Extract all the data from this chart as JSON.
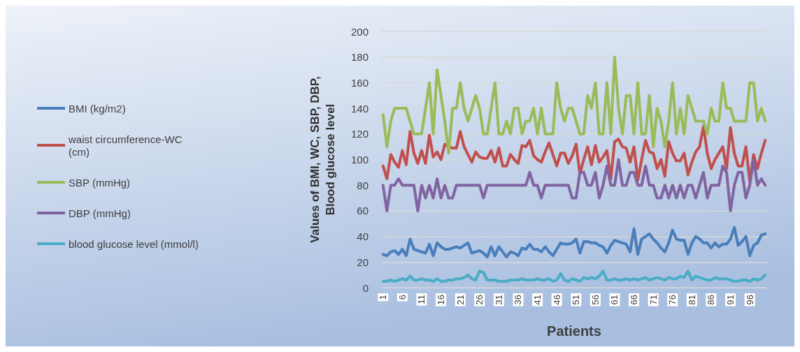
{
  "chart_data": {
    "type": "line",
    "xlabel": "Patients",
    "ylabel": "Values of BMI, WC, SBP, DBP, Blood glucose level",
    "categories": [
      "1",
      null,
      null,
      null,
      null,
      "6",
      null,
      null,
      null,
      null,
      "11",
      null,
      null,
      null,
      null,
      "16",
      null,
      null,
      null,
      null,
      "21",
      null,
      null,
      null,
      null,
      "26",
      null,
      null,
      null,
      null,
      "31",
      null,
      null,
      null,
      null,
      "36",
      null,
      null,
      null,
      null,
      "41",
      null,
      null,
      null,
      null,
      "46",
      null,
      null,
      null,
      null,
      "51",
      null,
      null,
      null,
      null,
      "56",
      null,
      null,
      null,
      null,
      "61",
      null,
      null,
      null,
      null,
      "66",
      null,
      null,
      null,
      null,
      "71",
      null,
      null,
      null,
      null,
      "76",
      null,
      null,
      null,
      null,
      "81",
      null,
      null,
      null,
      null,
      "86",
      null,
      null,
      null,
      null,
      "91",
      null,
      null,
      null,
      null,
      "96",
      null,
      null,
      null,
      null
    ],
    "series": [
      {
        "name": "BMI (kg/m2)",
        "color": "#4a7ebb",
        "values": [
          26,
          25,
          28,
          29,
          26,
          30,
          25,
          38,
          30,
          29,
          28,
          27,
          34,
          25,
          35,
          32,
          30,
          30,
          31,
          32,
          31,
          33,
          35,
          27,
          28,
          29,
          27,
          24,
          32,
          25,
          32,
          28,
          24,
          28,
          27,
          25,
          31,
          30,
          34,
          30,
          30,
          28,
          32,
          28,
          25,
          30,
          35,
          34,
          34,
          35,
          38,
          27,
          36,
          36,
          35,
          35,
          33,
          32,
          27,
          33,
          37,
          36,
          35,
          34,
          28,
          46,
          26,
          38,
          40,
          42,
          38,
          35,
          31,
          28,
          35,
          45,
          38,
          37,
          37,
          26,
          35,
          40,
          38,
          35,
          35,
          31,
          35,
          32,
          34,
          34,
          38,
          47,
          33,
          36,
          40,
          25,
          33,
          35,
          41,
          42
        ]
      },
      {
        "name": "waist circumference-WC (cm)",
        "color": "#c0504d",
        "values": [
          95,
          85,
          104,
          98,
          94,
          107,
          96,
          122,
          105,
          97,
          107,
          97,
          119,
          102,
          106,
          100,
          112,
          110,
          109,
          109,
          122,
          110,
          104,
          98,
          106,
          102,
          101,
          101,
          107,
          98,
          109,
          95,
          95,
          104,
          100,
          97,
          111,
          110,
          115,
          103,
          100,
          98,
          106,
          113,
          104,
          95,
          105,
          105,
          97,
          103,
          112,
          89,
          100,
          110,
          96,
          111,
          98,
          102,
          107,
          85,
          114,
          116,
          110,
          109,
          98,
          110,
          84,
          100,
          115,
          106,
          105,
          93,
          100,
          87,
          114,
          105,
          99,
          99,
          105,
          88,
          98,
          106,
          110,
          126,
          105,
          93,
          100,
          105,
          110,
          93,
          125,
          105,
          95,
          95,
          110,
          83,
          104,
          93,
          105,
          115
        ]
      },
      {
        "name": "SBP (mmHg)",
        "color": "#9bbb59",
        "values": [
          135,
          110,
          130,
          140,
          140,
          140,
          140,
          130,
          120,
          120,
          120,
          140,
          160,
          120,
          170,
          150,
          130,
          105,
          140,
          140,
          160,
          140,
          130,
          140,
          150,
          140,
          120,
          120,
          140,
          160,
          120,
          120,
          130,
          120,
          140,
          140,
          120,
          130,
          130,
          140,
          120,
          140,
          120,
          120,
          120,
          160,
          140,
          130,
          140,
          140,
          130,
          120,
          120,
          150,
          140,
          160,
          120,
          120,
          160,
          120,
          180,
          140,
          120,
          150,
          150,
          120,
          160,
          120,
          120,
          150,
          110,
          140,
          130,
          110,
          130,
          160,
          120,
          140,
          120,
          150,
          140,
          130,
          130,
          130,
          120,
          140,
          130,
          130,
          160,
          140,
          140,
          130,
          130,
          130,
          130,
          160,
          160,
          130,
          140,
          130
        ]
      },
      {
        "name": "DBP (mmHg)",
        "color": "#8064a2",
        "values": [
          80,
          60,
          80,
          80,
          85,
          80,
          80,
          80,
          80,
          60,
          80,
          70,
          80,
          70,
          85,
          70,
          80,
          70,
          70,
          80,
          80,
          80,
          80,
          80,
          80,
          80,
          70,
          80,
          80,
          80,
          80,
          80,
          80,
          80,
          80,
          80,
          80,
          80,
          90,
          80,
          80,
          70,
          80,
          80,
          80,
          80,
          80,
          80,
          80,
          70,
          70,
          90,
          90,
          80,
          80,
          90,
          70,
          80,
          95,
          80,
          80,
          100,
          80,
          80,
          90,
          90,
          80,
          80,
          95,
          80,
          80,
          70,
          70,
          80,
          70,
          80,
          70,
          80,
          70,
          80,
          80,
          70,
          80,
          90,
          70,
          80,
          80,
          80,
          95,
          90,
          60,
          80,
          90,
          90,
          70,
          80,
          100,
          80,
          85,
          80
        ]
      },
      {
        "name": "blood glucose level (mmol/l)",
        "color": "#4bacc6",
        "values": [
          5,
          5,
          6,
          5,
          6,
          7,
          6,
          9,
          6,
          6,
          7,
          6,
          6,
          5,
          7,
          5,
          5,
          6,
          6,
          7,
          7,
          8,
          10,
          7,
          6,
          13,
          12,
          6,
          6,
          6,
          5,
          5,
          5,
          6,
          6,
          6,
          7,
          6,
          6,
          6,
          7,
          6,
          6,
          7,
          5,
          6,
          11,
          6,
          5,
          7,
          6,
          5,
          8,
          7,
          8,
          7,
          9,
          13,
          6,
          6,
          7,
          6,
          6,
          7,
          6,
          7,
          6,
          7,
          8,
          6,
          7,
          8,
          7,
          6,
          8,
          7,
          7,
          9,
          8,
          13,
          6,
          9,
          8,
          7,
          6,
          6,
          8,
          7,
          7,
          7,
          6,
          5,
          5,
          6,
          6,
          5,
          7,
          6,
          7,
          10
        ]
      }
    ],
    "ylim": [
      0,
      200
    ],
    "yticks": [
      0,
      20,
      40,
      60,
      80,
      100,
      120,
      140,
      160,
      180,
      200
    ],
    "grid": "y",
    "legend": "left",
    "marker": "none",
    "line_style": "solid"
  }
}
